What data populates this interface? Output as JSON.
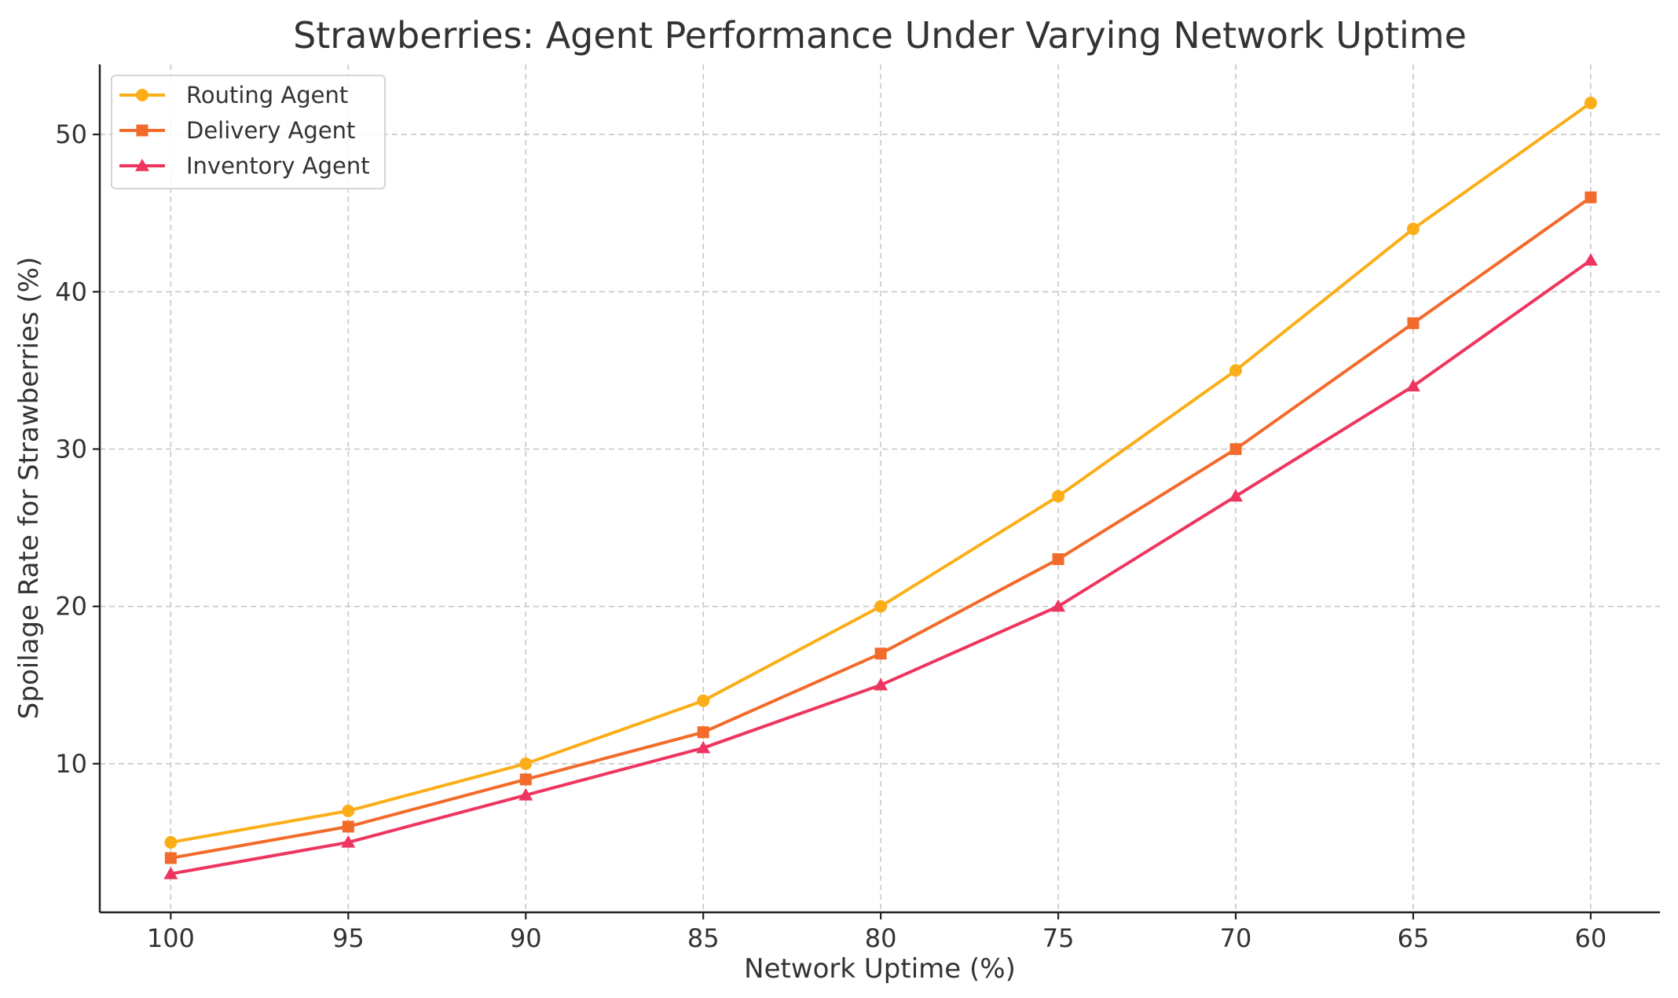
{
  "chart_data": {
    "type": "line",
    "title": "Strawberries: Agent Performance Under Varying Network Uptime",
    "xlabel": "Network Uptime (%)",
    "ylabel": "Spoilage Rate for Strawberries (%)",
    "x": [
      100,
      95,
      90,
      85,
      80,
      75,
      70,
      65,
      60
    ],
    "x_tick_labels": [
      "100",
      "95",
      "90",
      "85",
      "80",
      "75",
      "70",
      "65",
      "60"
    ],
    "xlim": [
      102,
      58.05
    ],
    "x_reversed": true,
    "ylim": [
      0.55,
      54.45
    ],
    "y_ticks": [
      10,
      20,
      30,
      40,
      50
    ],
    "y_tick_labels": [
      "10",
      "20",
      "30",
      "40",
      "50"
    ],
    "grid": true,
    "legend_position": "top-left",
    "series": [
      {
        "name": "Routing Agent",
        "values": [
          5,
          7,
          10,
          14,
          20,
          27,
          35,
          44,
          52
        ],
        "color": "#FBAE17",
        "marker": "circle"
      },
      {
        "name": "Delivery Agent",
        "values": [
          4,
          6,
          9,
          12,
          17,
          23,
          30,
          38,
          46
        ],
        "color": "#F26B2A",
        "marker": "square"
      },
      {
        "name": "Inventory Agent",
        "values": [
          3,
          5,
          8,
          11,
          15,
          20,
          27,
          34,
          42
        ],
        "color": "#EE3560",
        "marker": "triangle"
      }
    ]
  }
}
